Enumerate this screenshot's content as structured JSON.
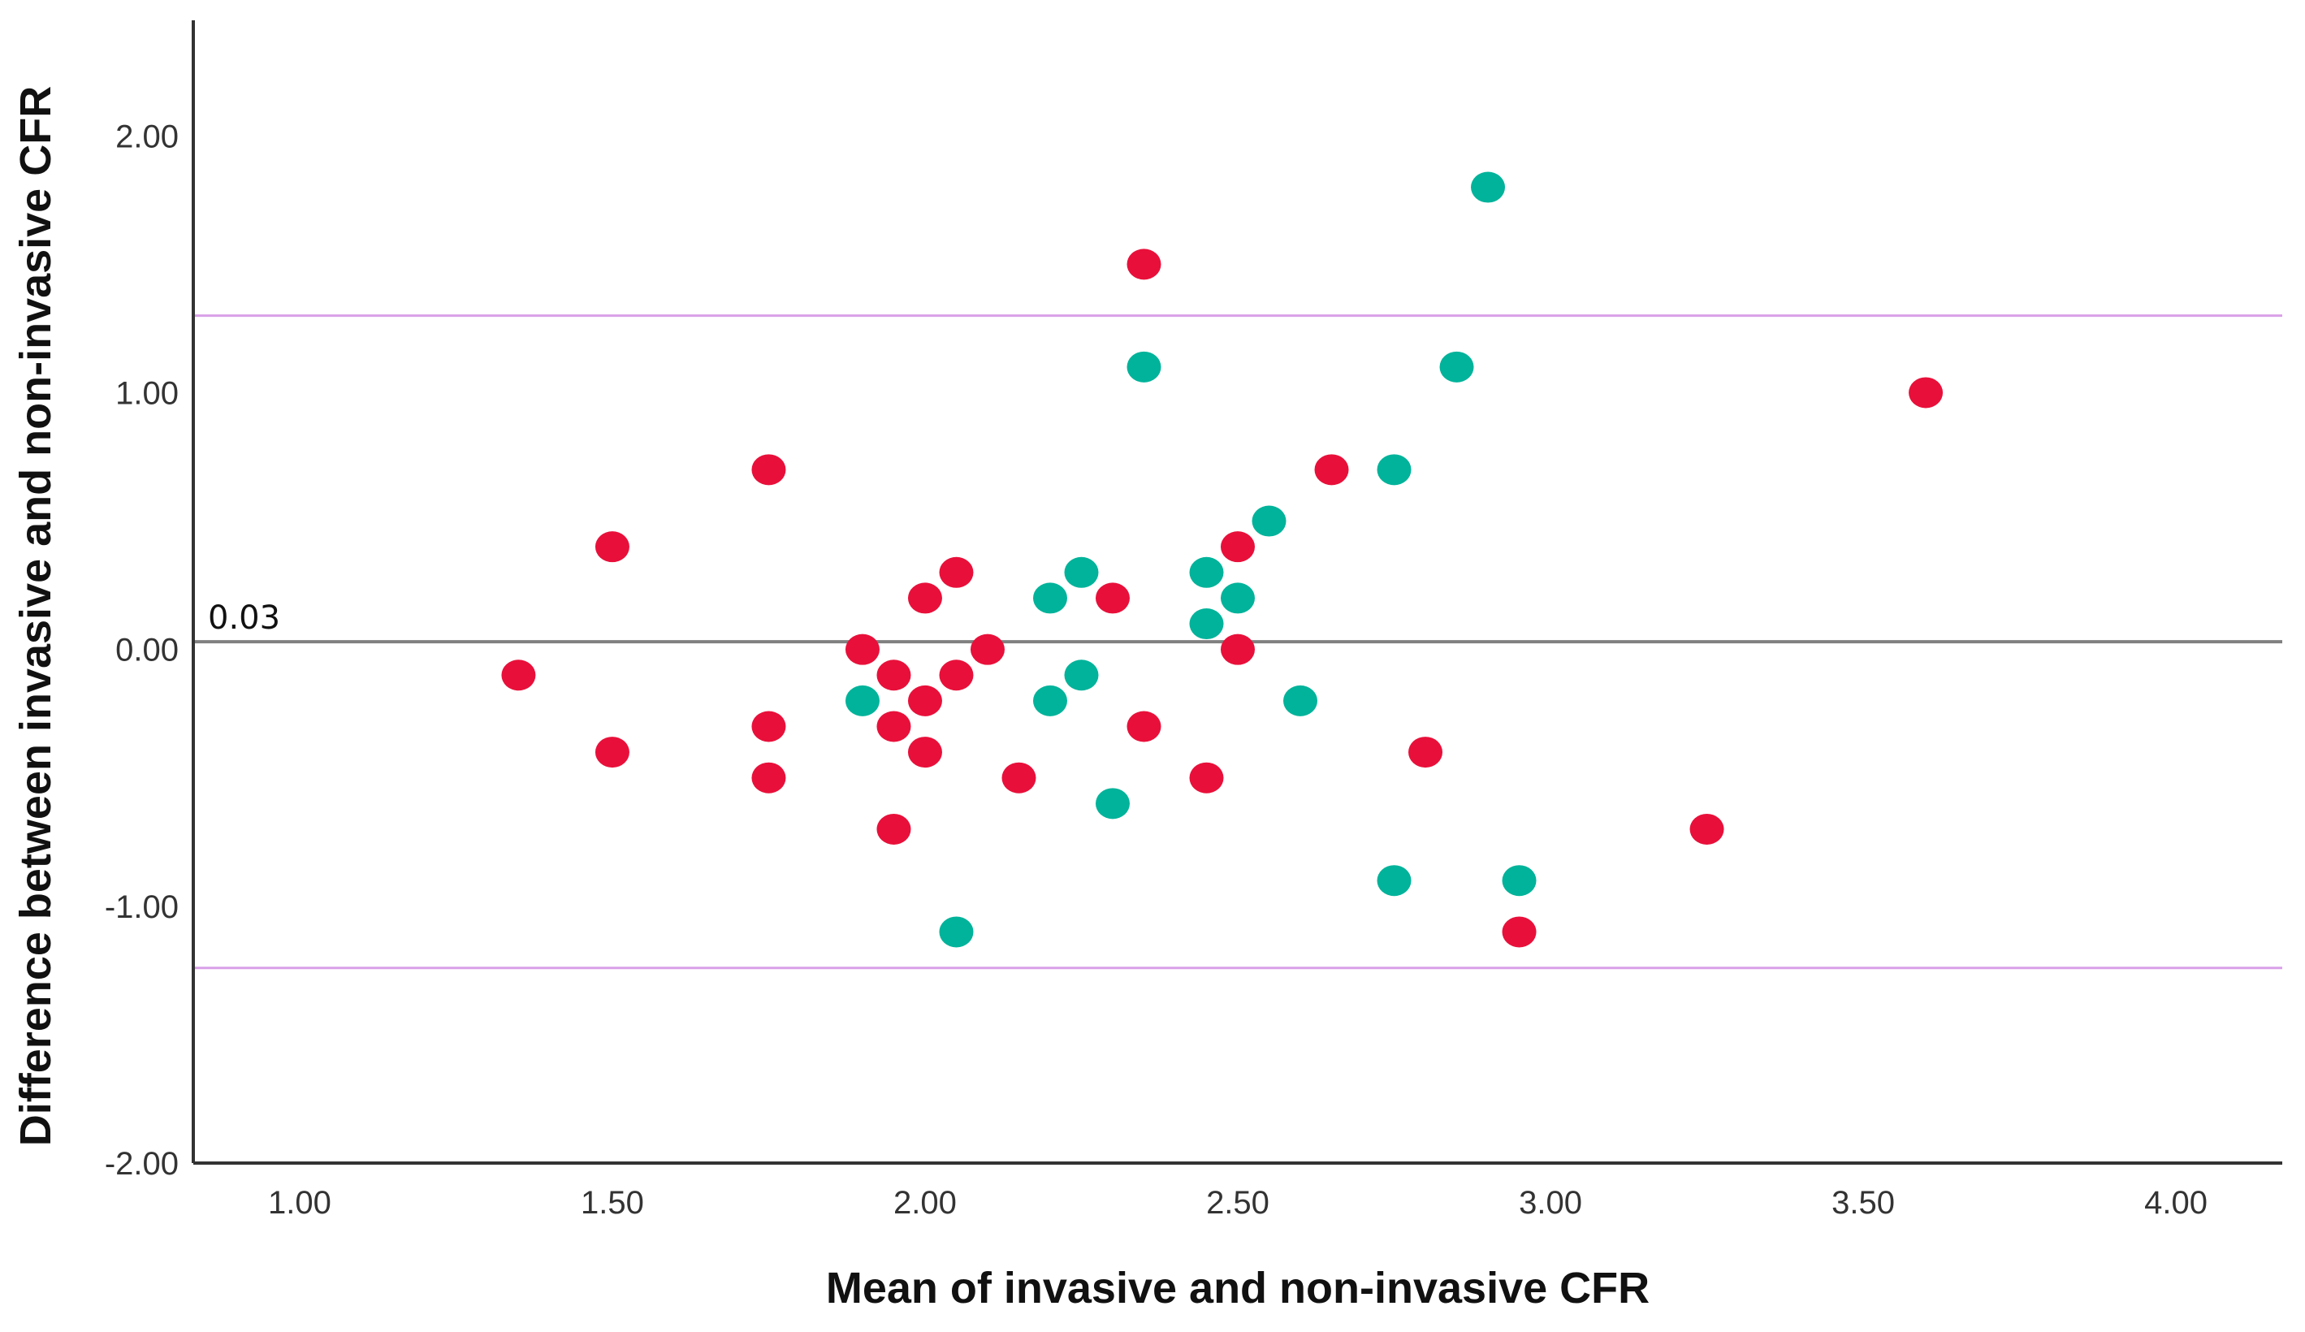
{
  "chart_data": {
    "type": "scatter",
    "title": "",
    "xlabel": "Mean of invasive and non-invasive CFR",
    "ylabel": "Difference between invasive and non-invasive CFR",
    "xlim": [
      0.83,
      4.17
    ],
    "ylim": [
      -2.0,
      2.45
    ],
    "x_ticks": [
      "1.00",
      "1.50",
      "2.00",
      "2.50",
      "3.00",
      "3.50",
      "4.00"
    ],
    "x_tick_values": [
      1.0,
      1.5,
      2.0,
      2.5,
      3.0,
      3.5,
      4.0
    ],
    "y_ticks": [
      "2.00",
      "1.00",
      "0.00",
      "-1.00",
      "-2.00"
    ],
    "y_tick_values": [
      2.0,
      1.0,
      0.0,
      -1.0,
      -2.0
    ],
    "grid": false,
    "reference_lines": [
      {
        "kind": "mean",
        "value": 0.03,
        "label": "0.03",
        "color": "#808080"
      },
      {
        "kind": "upper-limit",
        "value": 1.3,
        "color": "#d9a0e8"
      },
      {
        "kind": "lower-limit",
        "value": -1.24,
        "color": "#d9a0e8"
      }
    ],
    "series": [
      {
        "color": "#e8103a",
        "points": [
          [
            1.35,
            -0.1
          ],
          [
            1.5,
            0.4
          ],
          [
            1.5,
            -0.4
          ],
          [
            1.75,
            0.7
          ],
          [
            1.75,
            -0.3
          ],
          [
            1.75,
            -0.5
          ],
          [
            1.9,
            0.0
          ],
          [
            1.95,
            -0.1
          ],
          [
            1.95,
            -0.3
          ],
          [
            1.95,
            -0.7
          ],
          [
            2.0,
            0.2
          ],
          [
            2.0,
            -0.2
          ],
          [
            2.0,
            -0.4
          ],
          [
            2.05,
            0.3
          ],
          [
            2.05,
            -0.1
          ],
          [
            2.1,
            0.0
          ],
          [
            2.15,
            -0.5
          ],
          [
            2.3,
            0.2
          ],
          [
            2.35,
            1.5
          ],
          [
            2.35,
            -0.3
          ],
          [
            2.45,
            -0.5
          ],
          [
            2.5,
            0.4
          ],
          [
            2.5,
            0.0
          ],
          [
            2.65,
            0.7
          ],
          [
            2.8,
            -0.4
          ],
          [
            2.95,
            -1.1
          ],
          [
            3.25,
            -0.7
          ],
          [
            3.6,
            1.0
          ]
        ]
      },
      {
        "color": "#00b39a",
        "points": [
          [
            1.9,
            -0.2
          ],
          [
            2.05,
            -1.1
          ],
          [
            2.2,
            0.2
          ],
          [
            2.2,
            -0.2
          ],
          [
            2.25,
            0.3
          ],
          [
            2.25,
            -0.1
          ],
          [
            2.3,
            -0.6
          ],
          [
            2.35,
            1.1
          ],
          [
            2.45,
            0.3
          ],
          [
            2.45,
            0.1
          ],
          [
            2.5,
            0.2
          ],
          [
            2.55,
            0.5
          ],
          [
            2.6,
            -0.2
          ],
          [
            2.75,
            0.7
          ],
          [
            2.75,
            -0.9
          ],
          [
            2.85,
            1.1
          ],
          [
            2.9,
            1.8
          ],
          [
            2.95,
            -0.9
          ]
        ]
      }
    ]
  }
}
